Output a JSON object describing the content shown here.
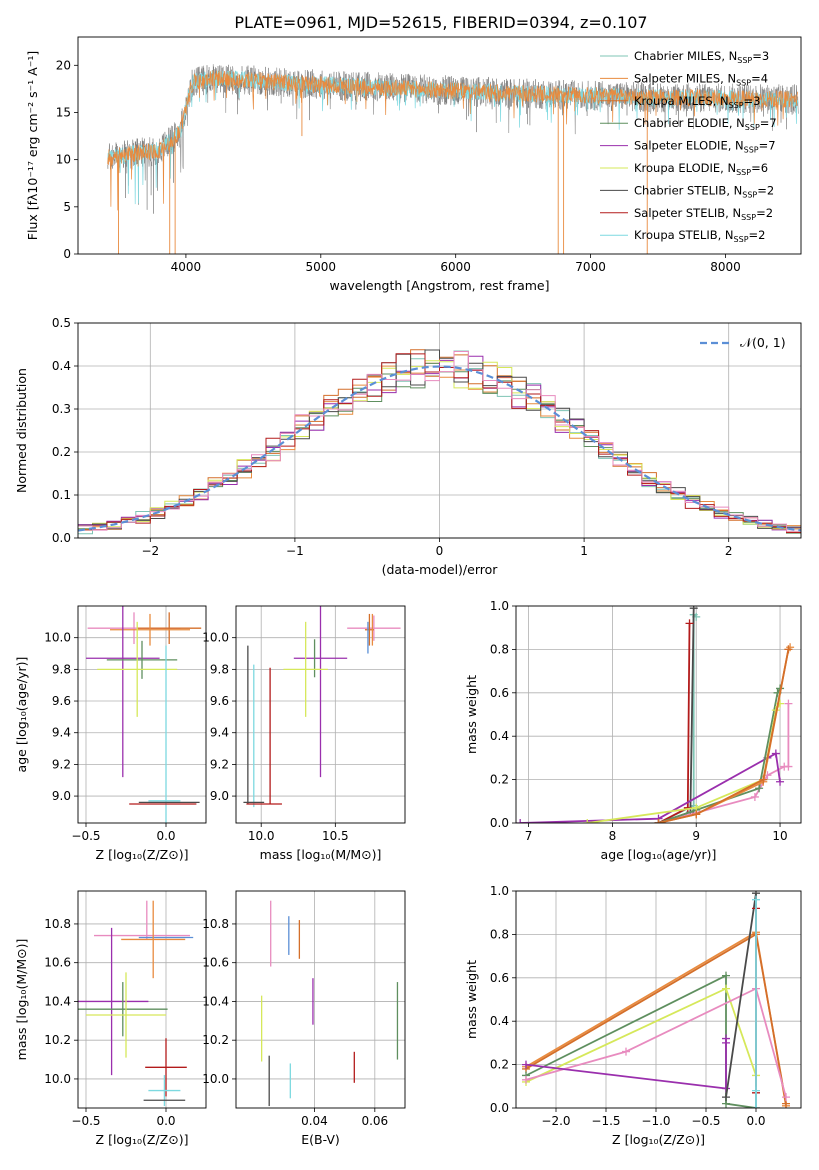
{
  "figure": {
    "title": "PLATE=0961, MJD=52615, FIBERID=0394, z=0.107"
  },
  "colors": {
    "chabrier_miles": "#7fc4b4",
    "salpeter_miles": "#e88b3f",
    "kroupa_miles": "#d46f2a",
    "chabrier_elodie": "#5f8f5f",
    "salpeter_elodie": "#9a2fad",
    "kroupa_elodie": "#d6e85a",
    "chabrier_stelib": "#4a4a4a",
    "salpeter_stelib": "#b31b1b",
    "kroupa_stelib": "#7dd9e0",
    "pink": "#e88bbf",
    "normal_curve": "#5b8fd6",
    "spectrum_gray": "#7f7f7f"
  },
  "chart_data": [
    {
      "id": "spectrum",
      "type": "line",
      "xlabel": "wavelength [Angstrom, rest frame]",
      "ylabel": "Flux [fλ10⁻¹⁷ erg cm⁻² s⁻¹ A⁻¹]",
      "xlim": [
        3200,
        8560
      ],
      "ylim": [
        0,
        23
      ],
      "xticks": [
        "4000",
        "5000",
        "6000",
        "7000",
        "8000"
      ],
      "yticks": [
        "0",
        "5",
        "10",
        "15",
        "20"
      ],
      "grid": false,
      "legend_position": "right",
      "legend": [
        {
          "label": "Chabrier MILES, N",
          "sub": "SSP",
          "suffix": "=3",
          "color": "#7fc4b4"
        },
        {
          "label": "Salpeter MILES, N",
          "sub": "SSP",
          "suffix": "=4",
          "color": "#e88b3f"
        },
        {
          "label": "Kroupa MILES, N",
          "sub": "SSP",
          "suffix": "=3",
          "color": "#d46f2a"
        },
        {
          "label": "Chabrier ELODIE, N",
          "sub": "SSP",
          "suffix": "=7",
          "color": "#5f8f5f"
        },
        {
          "label": "Salpeter ELODIE, N",
          "sub": "SSP",
          "suffix": "=7",
          "color": "#9a2fad"
        },
        {
          "label": "Kroupa ELODIE, N",
          "sub": "SSP",
          "suffix": "=6",
          "color": "#d6e85a"
        },
        {
          "label": "Chabrier STELIB, N",
          "sub": "SSP",
          "suffix": "=2",
          "color": "#4a4a4a"
        },
        {
          "label": "Salpeter STELIB, N",
          "sub": "SSP",
          "suffix": "=2",
          "color": "#b31b1b"
        },
        {
          "label": "Kroupa STELIB, N",
          "sub": "SSP",
          "suffix": "=2",
          "color": "#7dd9e0"
        }
      ],
      "continuum": [
        [
          3420,
          10.2
        ],
        [
          3600,
          10.6
        ],
        [
          3800,
          11.0
        ],
        [
          3950,
          12.8
        ],
        [
          4050,
          18.2
        ],
        [
          4200,
          18.6
        ],
        [
          4500,
          18.4
        ],
        [
          4800,
          18.1
        ],
        [
          5100,
          17.9
        ],
        [
          5500,
          17.6
        ],
        [
          6000,
          17.3
        ],
        [
          6500,
          17.0
        ],
        [
          7000,
          16.8
        ],
        [
          7500,
          16.6
        ],
        [
          8000,
          16.5
        ],
        [
          8500,
          16.4
        ]
      ],
      "dips": [
        [
          3500,
          0
        ],
        [
          3880,
          0
        ],
        [
          3920,
          0
        ],
        [
          4860,
          12.5
        ],
        [
          6760,
          0
        ],
        [
          6800,
          0
        ],
        [
          7420,
          0
        ]
      ]
    },
    {
      "id": "residuals",
      "type": "step",
      "xlabel": "(data-model)/error",
      "ylabel": "Normed distribution",
      "xlim": [
        -2.5,
        2.5
      ],
      "ylim": [
        0,
        0.5
      ],
      "xticks": [
        "−2",
        "−1",
        "0",
        "1",
        "2"
      ],
      "yticks": [
        "0.0",
        "0.1",
        "0.2",
        "0.3",
        "0.4",
        "0.5"
      ],
      "grid": true,
      "legend_position": "top-right",
      "normal_label": "𝒩(0, 1)",
      "bin_width": 0.1
    },
    {
      "id": "age_vs_Z",
      "type": "errorbar",
      "xlabel": "Z [log₁₀(Z/Z⊙)]",
      "ylabel": "age  [log₁₀(age/yr)]",
      "xlim": [
        -0.55,
        0.25
      ],
      "ylim": [
        8.83,
        10.2
      ],
      "xticks": [
        "−0.5",
        "0.0"
      ],
      "yticks": [
        "9.0",
        "9.2",
        "9.4",
        "9.6",
        "9.8",
        "10.0"
      ],
      "grid": true,
      "points": [
        {
          "x": -0.2,
          "y": 10.06,
          "xerr": 0.29,
          "yerr": 0.1,
          "color": "#e88bbf"
        },
        {
          "x": 0.02,
          "y": 10.06,
          "xerr": 0.2,
          "yerr": 0.1,
          "color": "#d46f2a"
        },
        {
          "x": -0.1,
          "y": 10.05,
          "xerr": 0.25,
          "yerr": 0.1,
          "color": "#e88b3f"
        },
        {
          "x": -0.27,
          "y": 9.87,
          "xerr": 0.23,
          "yerr": 0.75,
          "color": "#9a2fad"
        },
        {
          "x": -0.15,
          "y": 9.86,
          "xerr": 0.22,
          "yerr": 0.12,
          "color": "#5f8f5f"
        },
        {
          "x": -0.18,
          "y": 9.8,
          "xerr": 0.25,
          "yerr": 0.3,
          "color": "#d6e85a"
        },
        {
          "x": 0.0,
          "y": 9.3,
          "xerr": 0.0,
          "yerr": 0.65,
          "color": "#7dd9e0"
        },
        {
          "x": 0.02,
          "y": 8.96,
          "xerr": 0.19,
          "yerr": 0.0,
          "color": "#4a4a4a"
        },
        {
          "x": -0.02,
          "y": 8.95,
          "xerr": 0.21,
          "yerr": 0.0,
          "color": "#b31b1b"
        },
        {
          "x": -0.01,
          "y": 8.97,
          "xerr": 0.1,
          "yerr": 0.0,
          "color": "#7dd9e0"
        }
      ]
    },
    {
      "id": "age_vs_mass",
      "type": "errorbar",
      "xlabel": "mass [log₁₀(M/M⊙)]",
      "ylabel": "",
      "xlim": [
        9.83,
        10.97
      ],
      "ylim": [
        8.83,
        10.2
      ],
      "xticks": [
        "10.0",
        "10.5"
      ],
      "yticks": [
        "9.0",
        "9.2",
        "9.4",
        "9.6",
        "9.8",
        "10.0"
      ],
      "grid": true,
      "points": [
        {
          "x": 10.76,
          "y": 10.06,
          "xerr": 0.18,
          "yerr": 0.08,
          "color": "#e88bbf"
        },
        {
          "x": 10.73,
          "y": 10.05,
          "xerr": 0.03,
          "yerr": 0.1,
          "color": "#d46f2a"
        },
        {
          "x": 10.75,
          "y": 10.05,
          "xerr": 0.0,
          "yerr": 0.1,
          "color": "#e88b3f"
        },
        {
          "x": 10.72,
          "y": 10.0,
          "xerr": 0.0,
          "yerr": 0.1,
          "color": "#5b8fd6"
        },
        {
          "x": 10.4,
          "y": 9.87,
          "xerr": 0.18,
          "yerr": 0.75,
          "color": "#9a2fad"
        },
        {
          "x": 10.36,
          "y": 9.87,
          "xerr": 0.0,
          "yerr": 0.12,
          "color": "#5f8f5f"
        },
        {
          "x": 10.3,
          "y": 9.8,
          "xerr": 0.15,
          "yerr": 0.3,
          "color": "#d6e85a"
        },
        {
          "x": 10.06,
          "y": 9.38,
          "xerr": 0.0,
          "yerr": 0.43,
          "color": "#b31b1b"
        },
        {
          "x": 9.95,
          "y": 9.38,
          "xerr": 0.0,
          "yerr": 0.45,
          "color": "#7dd9e0"
        },
        {
          "x": 9.91,
          "y": 9.45,
          "xerr": 0.0,
          "yerr": 0.5,
          "color": "#4a4a4a"
        },
        {
          "x": 10.02,
          "y": 8.95,
          "xerr": 0.12,
          "yerr": 0.0,
          "color": "#b31b1b"
        },
        {
          "x": 9.95,
          "y": 8.96,
          "xerr": 0.07,
          "yerr": 0.0,
          "color": "#4a4a4a"
        }
      ]
    },
    {
      "id": "massweight_vs_age",
      "type": "line",
      "xlabel": "age  [log₁₀(age/yr)]",
      "ylabel": "mass weight",
      "xlim": [
        6.85,
        10.25
      ],
      "ylim": [
        0,
        1
      ],
      "xticks": [
        "7",
        "8",
        "9",
        "10"
      ],
      "yticks": [
        "0.0",
        "0.2",
        "0.4",
        "0.6",
        "0.8",
        "1.0"
      ],
      "grid": true,
      "series": [
        {
          "color": "#7fc4b4",
          "x": [
            8.55,
            8.97,
            8.97,
            9.0
          ],
          "y": [
            0.0,
            0.08,
            0.96,
            0.95
          ]
        },
        {
          "color": "#4a4a4a",
          "x": [
            8.55,
            8.93,
            8.97
          ],
          "y": [
            0.0,
            0.05,
            0.99
          ]
        },
        {
          "color": "#b31b1b",
          "x": [
            8.55,
            8.9,
            8.92
          ],
          "y": [
            0.0,
            0.07,
            0.92
          ]
        },
        {
          "color": "#e88bbf",
          "x": [
            8.55,
            9.7,
            9.85,
            10.05,
            10.1,
            10.1
          ],
          "y": [
            0.0,
            0.12,
            0.22,
            0.26,
            0.26,
            0.55
          ]
        },
        {
          "color": "#9a2fad",
          "x": [
            6.9,
            8.55,
            9.85,
            9.95,
            10.0
          ],
          "y": [
            0.0,
            0.02,
            0.3,
            0.32,
            0.19
          ]
        },
        {
          "color": "#5f8f5f",
          "x": [
            8.55,
            9.0,
            9.75,
            9.97,
            10.0
          ],
          "y": [
            0.0,
            0.06,
            0.16,
            0.6,
            0.62
          ]
        },
        {
          "color": "#d6e85a",
          "x": [
            7.7,
            9.0,
            9.8,
            9.95,
            10.0
          ],
          "y": [
            0.0,
            0.07,
            0.2,
            0.52,
            0.55
          ]
        },
        {
          "color": "#e88b3f",
          "x": [
            8.55,
            9.0,
            9.8,
            10.1,
            10.12
          ],
          "y": [
            0.0,
            0.04,
            0.19,
            0.8,
            0.81
          ]
        },
        {
          "color": "#d46f2a",
          "x": [
            8.55,
            9.0,
            9.8,
            10.1
          ],
          "y": [
            0.0,
            0.04,
            0.2,
            0.8
          ]
        }
      ]
    },
    {
      "id": "mass_vs_Z",
      "type": "errorbar",
      "xlabel": "Z [log₁₀(Z/Z⊙)]",
      "ylabel": "mass [log₁₀(M/M⊙)]",
      "xlim": [
        -0.55,
        0.25
      ],
      "ylim": [
        9.85,
        10.97
      ],
      "xticks": [
        "−0.5",
        "0.0"
      ],
      "yticks": [
        "10.0",
        "10.2",
        "10.4",
        "10.6",
        "10.8"
      ],
      "grid": true,
      "points": [
        {
          "x": -0.15,
          "y": 10.74,
          "xerr": 0.3,
          "yerr": 0.0,
          "color": "#e88bbf"
        },
        {
          "x": -0.12,
          "y": 10.82,
          "xerr": 0.0,
          "yerr": 0.1,
          "color": "#e88bbf"
        },
        {
          "x": 0.0,
          "y": 10.73,
          "xerr": 0.17,
          "yerr": 0.0,
          "color": "#5b8fd6"
        },
        {
          "x": -0.08,
          "y": 10.72,
          "xerr": 0.2,
          "yerr": 0.2,
          "color": "#e88b3f"
        },
        {
          "x": -0.34,
          "y": 10.4,
          "xerr": 0.23,
          "yerr": 0.38,
          "color": "#9a2fad"
        },
        {
          "x": -0.27,
          "y": 10.36,
          "xerr": 0.28,
          "yerr": 0.14,
          "color": "#5f8f5f"
        },
        {
          "x": -0.25,
          "y": 10.33,
          "xerr": 0.25,
          "yerr": 0.22,
          "color": "#d6e85a"
        },
        {
          "x": 0.0,
          "y": 10.06,
          "xerr": 0.13,
          "yerr": 0.15,
          "color": "#b31b1b"
        },
        {
          "x": -0.01,
          "y": 9.94,
          "xerr": 0.1,
          "yerr": 0.08,
          "color": "#7dd9e0"
        },
        {
          "x": -0.01,
          "y": 9.89,
          "xerr": 0.13,
          "yerr": 0.0,
          "color": "#4a4a4a"
        }
      ]
    },
    {
      "id": "mass_vs_ebv",
      "type": "errorbar",
      "xlabel": "E(B-V)",
      "ylabel": "",
      "xlim": [
        0.014,
        0.07
      ],
      "ylim": [
        9.85,
        10.97
      ],
      "xticks": [
        "0.04",
        "0.06"
      ],
      "yticks": [
        "10.0",
        "10.2",
        "10.4",
        "10.6",
        "10.8"
      ],
      "grid": true,
      "points": [
        {
          "x": 0.0255,
          "y": 10.75,
          "xerr": 0.0,
          "yerr": 0.17,
          "color": "#e88bbf"
        },
        {
          "x": 0.0315,
          "y": 10.74,
          "xerr": 0.0,
          "yerr": 0.1,
          "color": "#5b8fd6"
        },
        {
          "x": 0.035,
          "y": 10.72,
          "xerr": 0.0,
          "yerr": 0.1,
          "color": "#d46f2a"
        },
        {
          "x": 0.0395,
          "y": 10.4,
          "xerr": 0.0,
          "yerr": 0.12,
          "color": "#9a2fad"
        },
        {
          "x": 0.0675,
          "y": 10.3,
          "xerr": 0.0,
          "yerr": 0.2,
          "color": "#5f8f5f"
        },
        {
          "x": 0.0225,
          "y": 10.26,
          "xerr": 0.0,
          "yerr": 0.17,
          "color": "#d6e85a"
        },
        {
          "x": 0.0532,
          "y": 10.06,
          "xerr": 0.0,
          "yerr": 0.08,
          "color": "#b31b1b"
        },
        {
          "x": 0.032,
          "y": 9.99,
          "xerr": 0.0,
          "yerr": 0.09,
          "color": "#7dd9e0"
        },
        {
          "x": 0.025,
          "y": 9.99,
          "xerr": 0.0,
          "yerr": 0.13,
          "color": "#4a4a4a"
        }
      ]
    },
    {
      "id": "massweight_vs_Z",
      "type": "line",
      "xlabel": "Z [log₁₀(Z/Z⊙)]",
      "ylabel": "mass weight",
      "xlim": [
        -2.4,
        0.45
      ],
      "ylim": [
        0,
        1
      ],
      "xticks": [
        "−2.0",
        "−1.5",
        "−1.0",
        "−0.5",
        "0.0"
      ],
      "yticks": [
        "0.0",
        "0.2",
        "0.4",
        "0.6",
        "0.8",
        "1.0"
      ],
      "grid": true,
      "series": [
        {
          "color": "#e88b3f",
          "x": [
            -2.3,
            0.0,
            0.3
          ],
          "y": [
            0.19,
            0.81,
            0.01
          ]
        },
        {
          "color": "#d46f2a",
          "x": [
            -2.3,
            0.0,
            0.3
          ],
          "y": [
            0.18,
            0.8,
            0.02
          ]
        },
        {
          "color": "#5f8f5f",
          "x": [
            -2.3,
            -0.3,
            -0.3,
            0.0
          ],
          "y": [
            0.15,
            0.61,
            0.02,
            0.0
          ]
        },
        {
          "color": "#d6e85a",
          "x": [
            -2.3,
            -0.3,
            0.0
          ],
          "y": [
            0.12,
            0.55,
            0.15
          ]
        },
        {
          "color": "#e88bbf",
          "x": [
            -2.3,
            -1.3,
            0.0,
            0.3
          ],
          "y": [
            0.13,
            0.26,
            0.55,
            0.05
          ]
        },
        {
          "color": "#9a2fad",
          "x": [
            -2.3,
            -0.3,
            -0.3,
            -0.3
          ],
          "y": [
            0.2,
            0.09,
            0.32,
            0.3
          ]
        },
        {
          "color": "#4a4a4a",
          "x": [
            -0.3,
            0.0,
            0.0
          ],
          "y": [
            0.05,
            0.99,
            0.0
          ]
        },
        {
          "color": "#b31b1b",
          "x": [
            0.0,
            0.0
          ],
          "y": [
            0.92,
            0.07
          ]
        },
        {
          "color": "#7dd9e0",
          "x": [
            0.0,
            0.0,
            0.0
          ],
          "y": [
            0.0,
            0.96,
            0.08
          ]
        }
      ]
    }
  ]
}
